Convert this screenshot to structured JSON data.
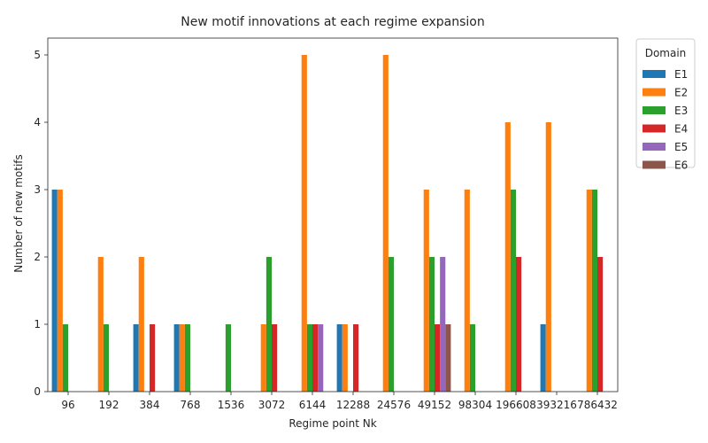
{
  "chart_data": {
    "type": "bar",
    "title": "New motif innovations at each regime expansion",
    "xlabel": "Regime point Nk",
    "ylabel": "Number of new motifs",
    "ylim": [
      0,
      5.25
    ],
    "yticks": [
      0,
      1,
      2,
      3,
      4,
      5
    ],
    "grid": false,
    "legend_title": "Domain",
    "legend_position": "outside top-right",
    "categories": [
      "96",
      "192",
      "384",
      "768",
      "1536",
      "3072",
      "6144",
      "12288",
      "24576",
      "49152",
      "98304",
      "196608",
      "393216",
      "786432"
    ],
    "series": [
      {
        "name": "E1",
        "color": "#1f77b4",
        "values": [
          3,
          0,
          1,
          1,
          0,
          0,
          0,
          1,
          0,
          0,
          0,
          0,
          1,
          0
        ]
      },
      {
        "name": "E2",
        "color": "#ff7f0e",
        "values": [
          3,
          2,
          2,
          1,
          0,
          1,
          5,
          1,
          5,
          3,
          3,
          4,
          4,
          3
        ]
      },
      {
        "name": "E3",
        "color": "#2ca02c",
        "values": [
          1,
          1,
          0,
          1,
          1,
          2,
          1,
          0,
          2,
          2,
          1,
          3,
          0,
          3
        ]
      },
      {
        "name": "E4",
        "color": "#d62728",
        "values": [
          0,
          0,
          1,
          0,
          0,
          1,
          1,
          1,
          0,
          1,
          0,
          2,
          0,
          2
        ]
      },
      {
        "name": "E5",
        "color": "#9467bd",
        "values": [
          0,
          0,
          0,
          0,
          0,
          0,
          1,
          0,
          0,
          2,
          0,
          0,
          0,
          0
        ]
      },
      {
        "name": "E6",
        "color": "#8c564b",
        "values": [
          0,
          0,
          0,
          0,
          0,
          0,
          0,
          0,
          0,
          1,
          0,
          0,
          0,
          0
        ]
      }
    ]
  }
}
